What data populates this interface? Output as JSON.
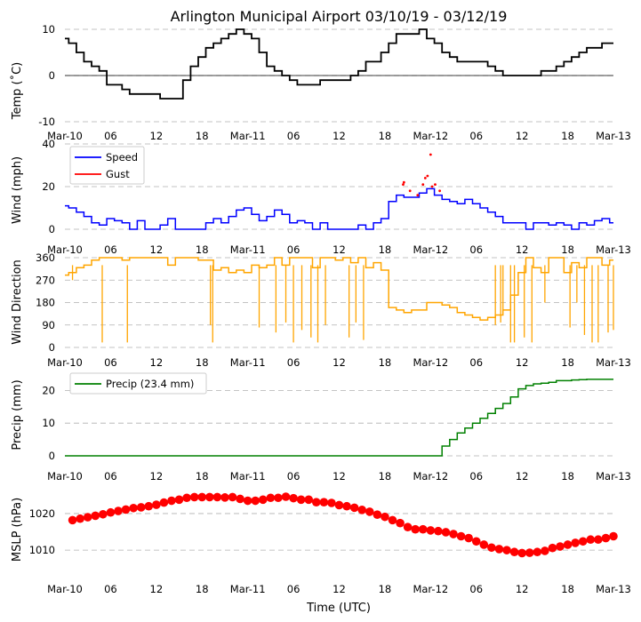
{
  "figure": {
    "title": "Arlington Municipal Airport 03/10/19 - 03/12/19",
    "xlabel": "Time (UTC)",
    "x_ticks": [
      "Mar-10",
      "06",
      "12",
      "18",
      "Mar-11",
      "06",
      "12",
      "18",
      "Mar-12",
      "06",
      "12",
      "18",
      "Mar-13"
    ],
    "colors": {
      "temp": "#000000",
      "speed": "#0000ff",
      "gust": "#ff0000",
      "dir": "#ffa500",
      "precip": "#008000",
      "mslp": "#ff0000",
      "grid": "#b0b0b0"
    }
  },
  "chart_data": [
    {
      "type": "line",
      "id": "temp",
      "ylabel": "Temp ($^\\circ$C)",
      "ylabel_display": "Temp (˚C)",
      "ylim": [
        -10,
        10
      ],
      "yticks": [
        -10,
        0,
        10
      ],
      "zero_line": true,
      "x_hours": [
        0,
        1,
        2,
        3,
        4,
        5,
        6,
        7,
        8,
        9,
        10,
        11,
        12,
        13,
        14,
        15,
        16,
        17,
        18,
        19,
        20,
        21,
        22,
        23,
        24,
        25,
        26,
        27,
        28,
        29,
        30,
        31,
        32,
        33,
        34,
        35,
        36,
        37,
        38,
        39,
        40,
        41,
        42,
        43,
        44,
        45,
        46,
        47,
        48,
        49,
        50,
        51,
        52,
        53,
        54,
        55,
        56,
        57,
        58,
        59,
        60,
        61,
        62,
        63,
        64,
        65,
        66,
        67,
        68,
        69,
        70,
        71,
        72
      ],
      "series": [
        {
          "name": "Temp",
          "values": [
            8,
            7,
            5,
            3,
            2,
            1,
            -2,
            -2,
            -3,
            -4,
            -4,
            -4,
            -4,
            -5,
            -5,
            -5,
            -1,
            2,
            4,
            6,
            7,
            8,
            9,
            10,
            9,
            8,
            5,
            2,
            1,
            0,
            -1,
            -2,
            -2,
            -2,
            -1,
            -1,
            -1,
            -1,
            0,
            1,
            3,
            3,
            5,
            7,
            9,
            9,
            9,
            10,
            8,
            7,
            5,
            4,
            3,
            3,
            3,
            3,
            2,
            1,
            0,
            0,
            0,
            0,
            0,
            1,
            1,
            2,
            3,
            4,
            5,
            6,
            6,
            7,
            7
          ]
        }
      ]
    },
    {
      "type": "line",
      "id": "wind",
      "ylabel": "Wind (mph)",
      "ylim": [
        0,
        40
      ],
      "yticks": [
        0,
        20,
        40
      ],
      "legend": "top-left",
      "x_hours": [
        0,
        1,
        2,
        3,
        4,
        5,
        6,
        7,
        8,
        9,
        10,
        11,
        12,
        13,
        14,
        15,
        16,
        17,
        18,
        19,
        20,
        21,
        22,
        23,
        24,
        25,
        26,
        27,
        28,
        29,
        30,
        31,
        32,
        33,
        34,
        35,
        36,
        37,
        38,
        39,
        40,
        41,
        42,
        43,
        44,
        45,
        46,
        47,
        48,
        49,
        50,
        51,
        52,
        53,
        54,
        55,
        56,
        57,
        58,
        59,
        60,
        61,
        62,
        63,
        64,
        65,
        66,
        67,
        68,
        69,
        70,
        71,
        72
      ],
      "series": [
        {
          "name": "Speed",
          "values": [
            11,
            10,
            8,
            6,
            3,
            2,
            5,
            4,
            3,
            0,
            4,
            0,
            0,
            2,
            5,
            0,
            0,
            0,
            0,
            3,
            5,
            3,
            6,
            9,
            10,
            7,
            4,
            6,
            9,
            7,
            3,
            4,
            3,
            0,
            3,
            0,
            0,
            0,
            0,
            2,
            0,
            3,
            5,
            13,
            16,
            15,
            15,
            17,
            19,
            16,
            14,
            13,
            12,
            14,
            12,
            10,
            8,
            6,
            3,
            3,
            3,
            0,
            3,
            3,
            2,
            3,
            2,
            0,
            3,
            2,
            4,
            5,
            3
          ]
        },
        {
          "name": "Gust",
          "points": [
            [
              44.4,
              21
            ],
            [
              44.5,
              22
            ],
            [
              45.3,
              18
            ],
            [
              46.3,
              16
            ],
            [
              47.0,
              21
            ],
            [
              47.3,
              24
            ],
            [
              47.6,
              25
            ],
            [
              48.0,
              35
            ],
            [
              48.2,
              20
            ],
            [
              48.6,
              21
            ],
            [
              49.2,
              18
            ]
          ]
        }
      ]
    },
    {
      "type": "line",
      "id": "direction",
      "ylabel": "Wind Direction",
      "ylim": [
        0,
        360
      ],
      "yticks": [
        0,
        90,
        180,
        270,
        360
      ],
      "x_hours": [
        0,
        1,
        2,
        3,
        4,
        5,
        6,
        7,
        8,
        9,
        10,
        11,
        12,
        13,
        14,
        15,
        16,
        17,
        18,
        19,
        20,
        21,
        22,
        23,
        24,
        25,
        26,
        27,
        28,
        29,
        30,
        31,
        32,
        33,
        34,
        35,
        36,
        37,
        38,
        39,
        40,
        41,
        42,
        43,
        44,
        45,
        46,
        47,
        48,
        49,
        50,
        51,
        52,
        53,
        54,
        55,
        56,
        57,
        58,
        59,
        60,
        61,
        62,
        63,
        64,
        65,
        66,
        67,
        68,
        69,
        70,
        71,
        72
      ],
      "series": [
        {
          "name": "Direction",
          "values": [
            290,
            300,
            320,
            330,
            350,
            360,
            360,
            360,
            350,
            360,
            360,
            360,
            360,
            360,
            330,
            360,
            360,
            360,
            350,
            350,
            310,
            320,
            300,
            310,
            300,
            330,
            320,
            330,
            360,
            330,
            360,
            360,
            360,
            320,
            360,
            360,
            350,
            360,
            340,
            360,
            320,
            340,
            310,
            160,
            150,
            140,
            150,
            150,
            180,
            180,
            170,
            160,
            140,
            130,
            120,
            110,
            120,
            130,
            150,
            210,
            300,
            360,
            320,
            300,
            360,
            360,
            300,
            340,
            320,
            360,
            360,
            330,
            350
          ]
        },
        {
          "name": "Direction drops",
          "points": [
            [
              1.0,
              270
            ],
            [
              4.9,
              20
            ],
            [
              8.2,
              20
            ],
            [
              19.1,
              90
            ],
            [
              19.4,
              20
            ],
            [
              25.5,
              80
            ],
            [
              27.7,
              60
            ],
            [
              29.0,
              100
            ],
            [
              30.0,
              20
            ],
            [
              31.1,
              70
            ],
            [
              32.3,
              40
            ],
            [
              33.2,
              20
            ],
            [
              34.2,
              90
            ],
            [
              37.3,
              40
            ],
            [
              38.2,
              100
            ],
            [
              39.2,
              30
            ],
            [
              56.5,
              90
            ],
            [
              57.2,
              100
            ],
            [
              57.5,
              150
            ],
            [
              58.5,
              20
            ],
            [
              59.0,
              20
            ],
            [
              60.3,
              40
            ],
            [
              61.3,
              20
            ],
            [
              63.0,
              180
            ],
            [
              66.3,
              80
            ],
            [
              67.2,
              180
            ],
            [
              68.2,
              50
            ],
            [
              69.2,
              20
            ],
            [
              70.0,
              20
            ],
            [
              71.3,
              60
            ],
            [
              72.0,
              70
            ]
          ]
        }
      ]
    },
    {
      "type": "line",
      "id": "precip",
      "ylabel": "Precip (mm)",
      "ylim": [
        0,
        25
      ],
      "yticks": [
        0,
        10,
        20
      ],
      "legend": "top-left",
      "x_hours": [
        0,
        1,
        2,
        3,
        4,
        5,
        6,
        7,
        8,
        9,
        10,
        11,
        12,
        13,
        14,
        15,
        16,
        17,
        18,
        19,
        20,
        21,
        22,
        23,
        24,
        25,
        26,
        27,
        28,
        29,
        30,
        31,
        32,
        33,
        34,
        35,
        36,
        37,
        38,
        39,
        40,
        41,
        42,
        43,
        44,
        45,
        46,
        47,
        48,
        49,
        50,
        51,
        52,
        53,
        54,
        55,
        56,
        57,
        58,
        59,
        60,
        61,
        62,
        63,
        64,
        65,
        66,
        67,
        68,
        69,
        70,
        71,
        72
      ],
      "series": [
        {
          "name": "Precip (23.4 mm)",
          "values": [
            0,
            0,
            0,
            0,
            0,
            0,
            0,
            0,
            0,
            0,
            0,
            0,
            0,
            0,
            0,
            0,
            0,
            0,
            0,
            0,
            0,
            0,
            0,
            0,
            0,
            0,
            0,
            0,
            0,
            0,
            0,
            0,
            0,
            0,
            0,
            0,
            0,
            0,
            0,
            0,
            0,
            0,
            0,
            0,
            0,
            0,
            0,
            0,
            0,
            0,
            3,
            5,
            7,
            8.5,
            10,
            11.5,
            13,
            14.5,
            16,
            18,
            20.5,
            21.5,
            22,
            22.2,
            22.5,
            23,
            23,
            23.2,
            23.3,
            23.4,
            23.4,
            23.4,
            23.4
          ]
        }
      ]
    },
    {
      "type": "scatter",
      "id": "mslp",
      "ylabel": "MSLP (hPa)",
      "ylim": [
        1003,
        1028
      ],
      "yticks": [
        1010,
        1020
      ],
      "x_hours": [
        1,
        2,
        3,
        4,
        5,
        6,
        7,
        8,
        9,
        10,
        11,
        12,
        13,
        14,
        15,
        16,
        17,
        18,
        19,
        20,
        21,
        22,
        23,
        24,
        25,
        26,
        27,
        28,
        29,
        30,
        31,
        32,
        33,
        34,
        35,
        36,
        37,
        38,
        39,
        40,
        41,
        42,
        43,
        44,
        45,
        46,
        47,
        48,
        49,
        50,
        51,
        52,
        53,
        54,
        55,
        56,
        57,
        58,
        59,
        60,
        61,
        62,
        63,
        64,
        65,
        66,
        67,
        68,
        69,
        70,
        71,
        72
      ],
      "series": [
        {
          "name": "MSLP",
          "values": [
            1018.2,
            1018.6,
            1019.0,
            1019.4,
            1019.8,
            1020.3,
            1020.7,
            1021.1,
            1021.5,
            1021.7,
            1022.0,
            1022.4,
            1023.0,
            1023.5,
            1023.8,
            1024.3,
            1024.5,
            1024.5,
            1024.5,
            1024.5,
            1024.4,
            1024.5,
            1024.0,
            1023.5,
            1023.5,
            1023.8,
            1024.3,
            1024.3,
            1024.6,
            1024.2,
            1023.8,
            1023.8,
            1023.1,
            1023.1,
            1022.9,
            1022.3,
            1022.0,
            1021.6,
            1021.0,
            1020.5,
            1019.7,
            1019.1,
            1018.2,
            1017.4,
            1016.3,
            1015.7,
            1015.7,
            1015.4,
            1015.2,
            1014.9,
            1014.4,
            1013.8,
            1013.3,
            1012.4,
            1011.5,
            1010.7,
            1010.3,
            1010.0,
            1009.5,
            1009.2,
            1009.3,
            1009.5,
            1009.8,
            1010.6,
            1011.0,
            1011.5,
            1012.0,
            1012.4,
            1012.9,
            1012.9,
            1013.3,
            1013.8
          ]
        }
      ]
    }
  ]
}
